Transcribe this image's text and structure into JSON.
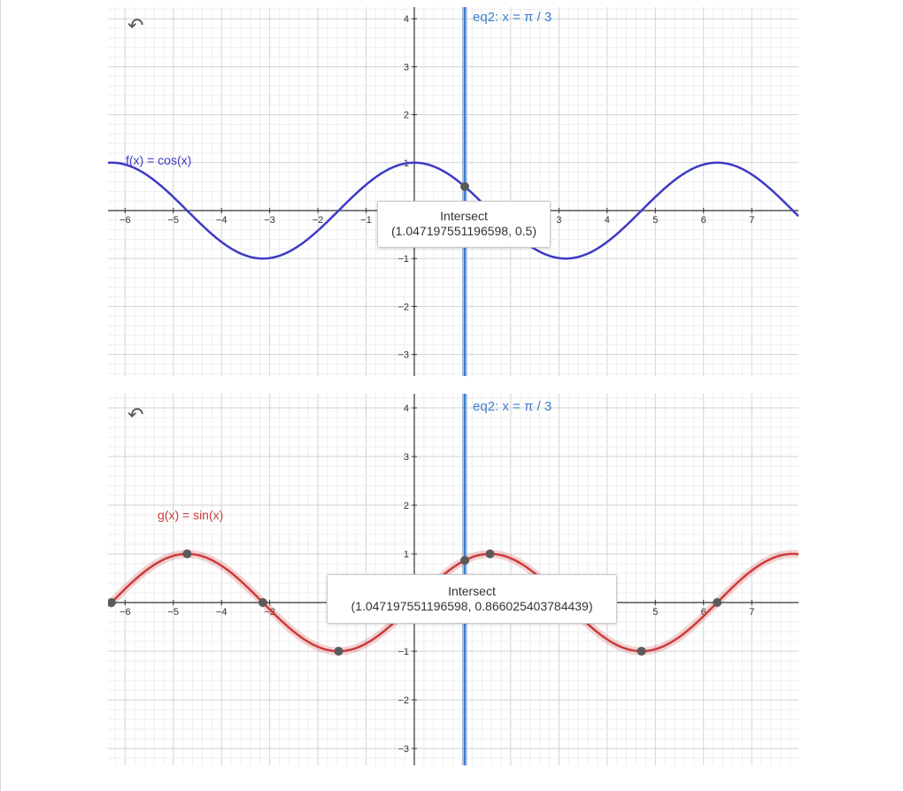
{
  "colors": {
    "cos": "#3d3ac6",
    "sin": "#cc3b3b",
    "eq": "#3f7dd1",
    "point": "#5a5a5a"
  },
  "icons": {
    "undo": "undo-icon"
  },
  "chart_data": [
    {
      "type": "line",
      "xlim": [
        -6.35,
        8.0
      ],
      "ylim": [
        -3.4,
        4.3
      ],
      "x_ticks": [
        "−6",
        "−5",
        "−4",
        "−3",
        "−2",
        "−1",
        "3",
        "4",
        "5",
        "6",
        "7"
      ],
      "y_ticks": [
        "4",
        "3",
        "2",
        "1",
        "−1",
        "−2",
        "−3"
      ],
      "grid": true,
      "series": [
        {
          "name": "f(x) = cos(x)",
          "function": "cos"
        }
      ],
      "vertical_line": {
        "x": 1.0471975512,
        "label": "eq2: x = π / 3"
      },
      "points": [
        {
          "x": 1.0471975512,
          "y": 0.5
        }
      ],
      "tooltip": {
        "title": "Intersect",
        "value": "(1.047197551196598, 0.5)"
      }
    },
    {
      "type": "line",
      "xlim": [
        -6.35,
        8.0
      ],
      "ylim": [
        -3.4,
        4.3
      ],
      "x_ticks": [
        "−6",
        "−5",
        "−4",
        "−3",
        "5",
        "6",
        "7"
      ],
      "y_ticks": [
        "4",
        "3",
        "2",
        "1",
        "−1",
        "−2",
        "−3"
      ],
      "grid": true,
      "series": [
        {
          "name": "g(x) = sin(x)",
          "function": "sin"
        }
      ],
      "vertical_line": {
        "x": 1.0471975512,
        "label": "eq2: x = π / 3"
      },
      "points": [
        {
          "x": -6.2832,
          "y": 0
        },
        {
          "x": -4.7124,
          "y": 1
        },
        {
          "x": -3.1416,
          "y": 0
        },
        {
          "x": -1.5708,
          "y": -1
        },
        {
          "x": 1.0471975512,
          "y": 0.866025403784439
        },
        {
          "x": 1.5708,
          "y": 1
        },
        {
          "x": 4.7124,
          "y": -1
        },
        {
          "x": 6.2832,
          "y": 0
        }
      ],
      "tooltip": {
        "title": "Intersect",
        "value": "(1.047197551196598, 0.866025403784439)"
      }
    }
  ]
}
